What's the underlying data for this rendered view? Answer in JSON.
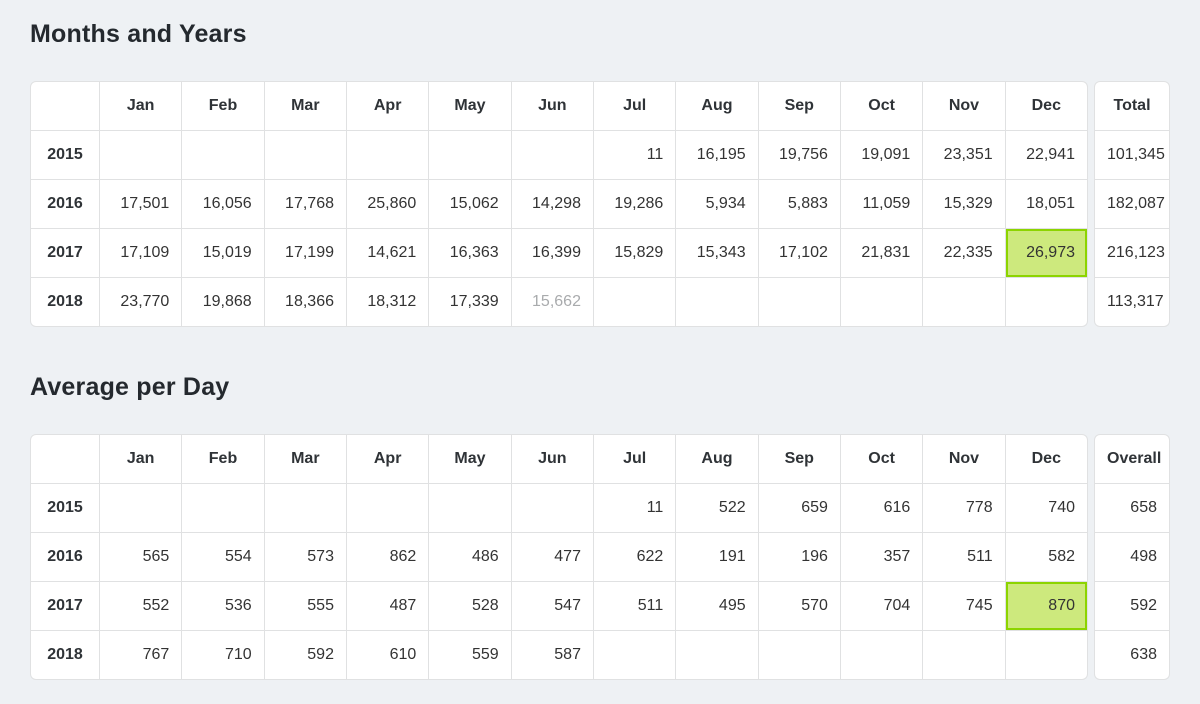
{
  "colors": {
    "page_background": "#eef1f4",
    "table_border": "#e0e1e2",
    "text": "#333333",
    "muted_text": "#a9abad",
    "highlight_background": "#cde97d",
    "highlight_border": "#8cd400"
  },
  "month_labels": [
    "Jan",
    "Feb",
    "Mar",
    "Apr",
    "May",
    "Jun",
    "Jul",
    "Aug",
    "Sep",
    "Oct",
    "Nov",
    "Dec"
  ],
  "tables": [
    {
      "id": "months-and-years",
      "title": "Months and Years",
      "last_col_label": "Total",
      "rows": [
        {
          "year": "2015",
          "months": [
            "",
            "",
            "",
            "",
            "",
            "",
            "11",
            "16,195",
            "19,756",
            "19,091",
            "23,351",
            "22,941"
          ],
          "total": "101,345"
        },
        {
          "year": "2016",
          "months": [
            "17,501",
            "16,056",
            "17,768",
            "25,860",
            "15,062",
            "14,298",
            "19,286",
            "5,934",
            "5,883",
            "11,059",
            "15,329",
            "18,051"
          ],
          "total": "182,087"
        },
        {
          "year": "2017",
          "months": [
            "17,109",
            "15,019",
            "17,199",
            "14,621",
            "16,363",
            "16,399",
            "15,829",
            "15,343",
            "17,102",
            "21,831",
            "22,335",
            "26,973"
          ],
          "total": "216,123",
          "highlight_month": 11
        },
        {
          "year": "2018",
          "months": [
            "23,770",
            "19,868",
            "18,366",
            "18,312",
            "17,339",
            "15,662",
            "",
            "",
            "",
            "",
            "",
            ""
          ],
          "total": "113,317",
          "muted_month": 5
        }
      ]
    },
    {
      "id": "average-per-day",
      "title": "Average per Day",
      "last_col_label": "Overall",
      "rows": [
        {
          "year": "2015",
          "months": [
            "",
            "",
            "",
            "",
            "",
            "",
            "11",
            "522",
            "659",
            "616",
            "778",
            "740"
          ],
          "total": "658"
        },
        {
          "year": "2016",
          "months": [
            "565",
            "554",
            "573",
            "862",
            "486",
            "477",
            "622",
            "191",
            "196",
            "357",
            "511",
            "582"
          ],
          "total": "498"
        },
        {
          "year": "2017",
          "months": [
            "552",
            "536",
            "555",
            "487",
            "528",
            "547",
            "511",
            "495",
            "570",
            "704",
            "745",
            "870"
          ],
          "total": "592",
          "highlight_month": 11
        },
        {
          "year": "2018",
          "months": [
            "767",
            "710",
            "592",
            "610",
            "559",
            "587",
            "",
            "",
            "",
            "",
            "",
            ""
          ],
          "total": "638"
        }
      ]
    }
  ]
}
